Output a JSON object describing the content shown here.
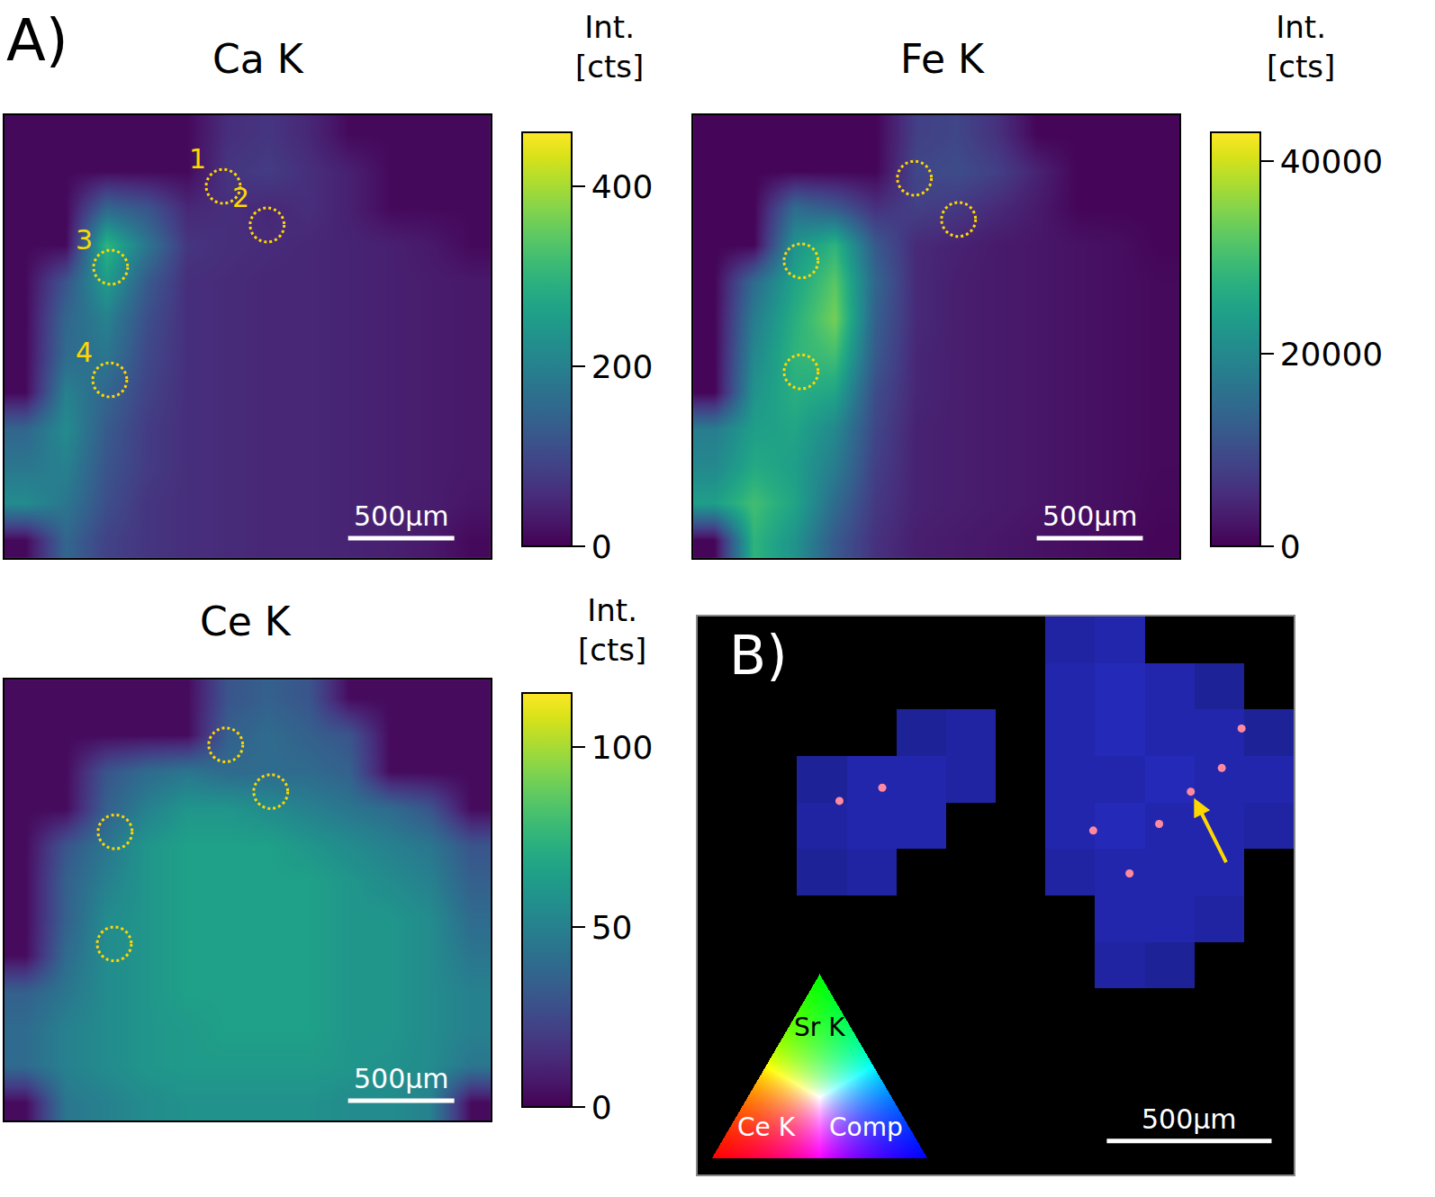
{
  "chart_data": [
    {
      "type": "heatmap",
      "panel": "A)",
      "title": "Ca K",
      "colorbar_title": [
        "Int.",
        "[cts]"
      ],
      "tick_labels": false,
      "xlim": [
        0,
        2290
      ],
      "ylim": [
        0,
        2085
      ],
      "zlim": [
        0,
        460
      ],
      "zticks": [
        0,
        200,
        400
      ],
      "scale_bar": {
        "length": 500,
        "label": "500µm"
      },
      "regions": [
        {
          "label": "1",
          "x": 1030,
          "y": 335
        },
        {
          "label": "2",
          "x": 1237,
          "y": 517
        },
        {
          "label": "3",
          "x": 500,
          "y": 716
        },
        {
          "label": "4",
          "x": 496,
          "y": 1246
        }
      ],
      "cells": [
        [
          10,
          10,
          10,
          10,
          10,
          60,
          70,
          50,
          10,
          10,
          10,
          10
        ],
        [
          10,
          10,
          10,
          10,
          10,
          70,
          80,
          60,
          40,
          10,
          10,
          10
        ],
        [
          10,
          10,
          150,
          120,
          50,
          60,
          50,
          60,
          40,
          10,
          10,
          10
        ],
        [
          10,
          10,
          300,
          180,
          70,
          60,
          55,
          50,
          45,
          40,
          30,
          10
        ],
        [
          10,
          120,
          250,
          130,
          60,
          55,
          50,
          50,
          45,
          40,
          35,
          30
        ],
        [
          10,
          150,
          200,
          110,
          60,
          55,
          50,
          50,
          45,
          40,
          35,
          30
        ],
        [
          10,
          160,
          180,
          100,
          60,
          55,
          50,
          50,
          45,
          40,
          35,
          30
        ],
        [
          10,
          200,
          150,
          90,
          60,
          55,
          50,
          50,
          45,
          40,
          35,
          30
        ],
        [
          150,
          220,
          130,
          80,
          60,
          55,
          50,
          50,
          45,
          40,
          35,
          30
        ],
        [
          180,
          200,
          120,
          80,
          60,
          55,
          50,
          50,
          45,
          40,
          35,
          30
        ],
        [
          220,
          180,
          110,
          70,
          60,
          55,
          50,
          50,
          45,
          40,
          35,
          25
        ],
        [
          10,
          150,
          90,
          70,
          60,
          55,
          50,
          50,
          45,
          40,
          30,
          10
        ]
      ]
    },
    {
      "type": "heatmap",
      "title": "Fe K",
      "colorbar_title": [
        "Int.",
        "[cts]"
      ],
      "tick_labels": false,
      "xlim": [
        0,
        2290
      ],
      "ylim": [
        0,
        2085
      ],
      "zlim": [
        0,
        43000
      ],
      "zticks": [
        0,
        20000,
        40000
      ],
      "scale_bar": {
        "length": 500,
        "label": "500µm"
      },
      "regions": [
        {
          "x": 1042,
          "y": 297
        },
        {
          "x": 1250,
          "y": 491
        },
        {
          "x": 508,
          "y": 686
        },
        {
          "x": 508,
          "y": 1208
        }
      ],
      "cells": [
        [
          500,
          500,
          500,
          500,
          500,
          8000,
          9000,
          6000,
          500,
          500,
          500,
          500
        ],
        [
          500,
          500,
          500,
          500,
          500,
          9000,
          10000,
          8000,
          4000,
          500,
          500,
          500
        ],
        [
          500,
          500,
          15000,
          12000,
          6000,
          8000,
          7000,
          5000,
          3000,
          500,
          500,
          500
        ],
        [
          500,
          500,
          22000,
          28000,
          12000,
          5000,
          4000,
          3000,
          2500,
          2000,
          1500,
          500
        ],
        [
          500,
          15000,
          25000,
          32000,
          14000,
          5000,
          3500,
          3000,
          2500,
          2000,
          1500,
          1000
        ],
        [
          500,
          18000,
          27000,
          34000,
          13000,
          5000,
          3500,
          3000,
          2500,
          2000,
          1500,
          1000
        ],
        [
          500,
          20000,
          28000,
          30000,
          12000,
          4500,
          3500,
          3000,
          2500,
          2000,
          1500,
          1000
        ],
        [
          500,
          22000,
          27000,
          25000,
          10000,
          4500,
          3500,
          3000,
          2500,
          2000,
          1500,
          1000
        ],
        [
          18000,
          24000,
          25000,
          20000,
          9000,
          4000,
          3500,
          3000,
          2500,
          2000,
          1500,
          1000
        ],
        [
          20000,
          26000,
          24000,
          18000,
          8000,
          4000,
          3500,
          3000,
          2500,
          2000,
          1500,
          1000
        ],
        [
          24000,
          30000,
          25000,
          15000,
          7000,
          4000,
          3500,
          3000,
          2500,
          2000,
          1500,
          800
        ],
        [
          500,
          28000,
          22000,
          12000,
          6000,
          3500,
          3000,
          2500,
          2000,
          1500,
          1000,
          500
        ]
      ]
    },
    {
      "type": "heatmap",
      "title": "Ce K",
      "colorbar_title": [
        "Int.",
        "[cts]"
      ],
      "tick_labels": false,
      "xlim": [
        0,
        2290
      ],
      "ylim": [
        0,
        2085
      ],
      "zlim": [
        0,
        115
      ],
      "zticks": [
        0,
        50,
        100
      ],
      "scale_bar": {
        "length": 500,
        "label": "500µm"
      },
      "regions": [
        {
          "x": 1042,
          "y": 309
        },
        {
          "x": 1254,
          "y": 530
        },
        {
          "x": 521,
          "y": 720
        },
        {
          "x": 517,
          "y": 1250
        }
      ],
      "cells": [
        [
          3,
          3,
          3,
          3,
          3,
          30,
          35,
          30,
          3,
          3,
          3,
          3
        ],
        [
          3,
          3,
          3,
          3,
          3,
          35,
          40,
          35,
          30,
          3,
          3,
          3
        ],
        [
          3,
          3,
          30,
          40,
          45,
          40,
          40,
          40,
          35,
          3,
          3,
          3
        ],
        [
          3,
          3,
          35,
          50,
          60,
          60,
          55,
          50,
          45,
          40,
          30,
          3
        ],
        [
          3,
          30,
          45,
          60,
          65,
          65,
          65,
          60,
          55,
          50,
          45,
          30
        ],
        [
          3,
          35,
          50,
          60,
          65,
          65,
          65,
          65,
          60,
          55,
          50,
          35
        ],
        [
          3,
          35,
          55,
          60,
          65,
          65,
          65,
          65,
          60,
          60,
          55,
          40
        ],
        [
          3,
          40,
          55,
          60,
          65,
          65,
          65,
          65,
          60,
          60,
          55,
          45
        ],
        [
          35,
          45,
          55,
          60,
          65,
          65,
          65,
          65,
          60,
          60,
          55,
          50
        ],
        [
          40,
          50,
          55,
          60,
          62,
          65,
          65,
          65,
          60,
          60,
          55,
          50
        ],
        [
          40,
          50,
          55,
          60,
          62,
          62,
          62,
          62,
          60,
          58,
          55,
          45
        ],
        [
          3,
          45,
          50,
          55,
          58,
          58,
          58,
          58,
          55,
          55,
          50,
          3
        ]
      ]
    },
    {
      "type": "rgb_map",
      "panel": "B)",
      "channels": [
        "Sr K",
        "Ce K",
        "Comp"
      ],
      "tick_labels": false,
      "xlim": [
        0,
        1808
      ],
      "ylim": [
        0,
        1694
      ],
      "scale_bar": {
        "length": 500,
        "label": "500µm"
      },
      "comp": {
        "color": "#2b30d8",
        "zlim": [
          0,
          100
        ],
        "cells": [
          [
            0,
            0,
            0,
            0,
            0,
            0,
            0,
            75,
            80,
            0,
            0,
            0
          ],
          [
            0,
            0,
            0,
            0,
            0,
            0,
            0,
            80,
            85,
            80,
            70,
            0
          ],
          [
            0,
            0,
            0,
            0,
            70,
            75,
            0,
            80,
            85,
            80,
            80,
            70
          ],
          [
            0,
            0,
            70,
            80,
            80,
            75,
            0,
            80,
            80,
            85,
            80,
            80
          ],
          [
            0,
            0,
            75,
            80,
            80,
            0,
            0,
            80,
            85,
            80,
            80,
            75
          ],
          [
            0,
            0,
            70,
            75,
            0,
            0,
            0,
            75,
            80,
            80,
            80,
            0
          ],
          [
            0,
            0,
            0,
            0,
            0,
            0,
            0,
            0,
            80,
            80,
            75,
            0
          ],
          [
            0,
            0,
            0,
            0,
            0,
            0,
            0,
            0,
            75,
            70,
            0,
            0
          ],
          [
            0,
            0,
            0,
            0,
            0,
            0,
            0,
            0,
            0,
            0,
            0,
            0
          ],
          [
            0,
            0,
            0,
            0,
            0,
            0,
            0,
            0,
            0,
            0,
            0,
            0
          ],
          [
            0,
            0,
            0,
            0,
            0,
            0,
            0,
            0,
            0,
            0,
            0,
            0
          ],
          [
            0,
            0,
            0,
            0,
            0,
            0,
            0,
            0,
            0,
            0,
            0,
            0
          ]
        ]
      },
      "ce_spots": {
        "color": "#ff8aa0",
        "x": [
          1496,
          1590,
          1400,
          1310,
          1650,
          1200,
          430,
          560
        ],
        "y": [
          532,
          460,
          630,
          780,
          340,
          650,
          560,
          520
        ]
      },
      "arrow": {
        "x": 1496,
        "y": 532
      }
    }
  ]
}
